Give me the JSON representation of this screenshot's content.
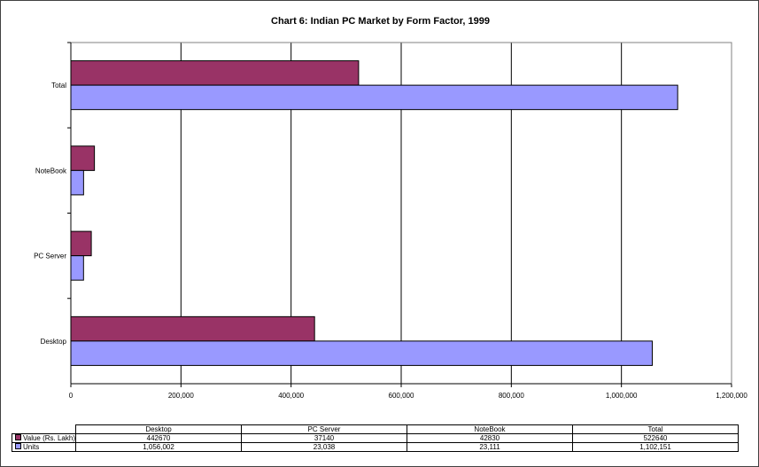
{
  "chart_data": {
    "type": "bar",
    "orientation": "horizontal",
    "title": "Chart 6: Indian PC Market by Form Factor, 1999",
    "categories": [
      "Desktop",
      "PC Server",
      "NoteBook",
      "Total"
    ],
    "series": [
      {
        "name": "Value (Rs. Lakh)",
        "values": [
          442670,
          37140,
          42830,
          522640
        ],
        "display": [
          "442670",
          "37140",
          "42830",
          "522640"
        ],
        "color": "#993366"
      },
      {
        "name": "Units",
        "values": [
          1056002,
          23038,
          23111,
          1102151
        ],
        "display": [
          "1,056,002",
          "23,038",
          "23,111",
          "1,102,151"
        ],
        "color": "#9999ff"
      }
    ],
    "xlim": [
      0,
      1200000
    ],
    "xticks": [
      "0",
      "200,000",
      "400,000",
      "600,000",
      "800,000",
      "1,000,000",
      "1,200,000"
    ],
    "grid": true,
    "legend": "data table below chart"
  }
}
